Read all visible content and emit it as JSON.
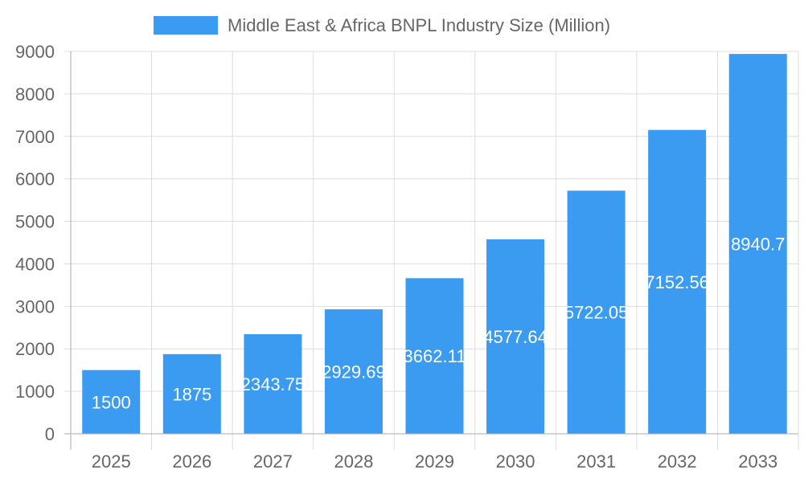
{
  "chart_data": {
    "type": "bar",
    "title": "",
    "legend": {
      "entries": [
        "Middle East & Africa BNPL Industry Size (Million)"
      ],
      "placement": "top"
    },
    "categories": [
      "2025",
      "2026",
      "2027",
      "2028",
      "2029",
      "2030",
      "2031",
      "2032",
      "2033"
    ],
    "series": [
      {
        "name": "Middle East & Africa BNPL Industry Size (Million)",
        "values": [
          1500,
          1875,
          2343.75,
          2929.69,
          3662.11,
          4577.64,
          5722.05,
          7152.56,
          8940.7
        ],
        "color": "#3a9bf0"
      }
    ],
    "data_labels": [
      "1500",
      "1875",
      "2343.75",
      "2929.69",
      "3662.11",
      "4577.64",
      "5722.05",
      "7152.56",
      "8940.7"
    ],
    "ylim": [
      0,
      9000
    ],
    "yticks": [
      "0",
      "1000",
      "2000",
      "3000",
      "4000",
      "5000",
      "6000",
      "7000",
      "8000",
      "9000"
    ],
    "xlabel": "",
    "ylabel": "",
    "grid": true
  }
}
